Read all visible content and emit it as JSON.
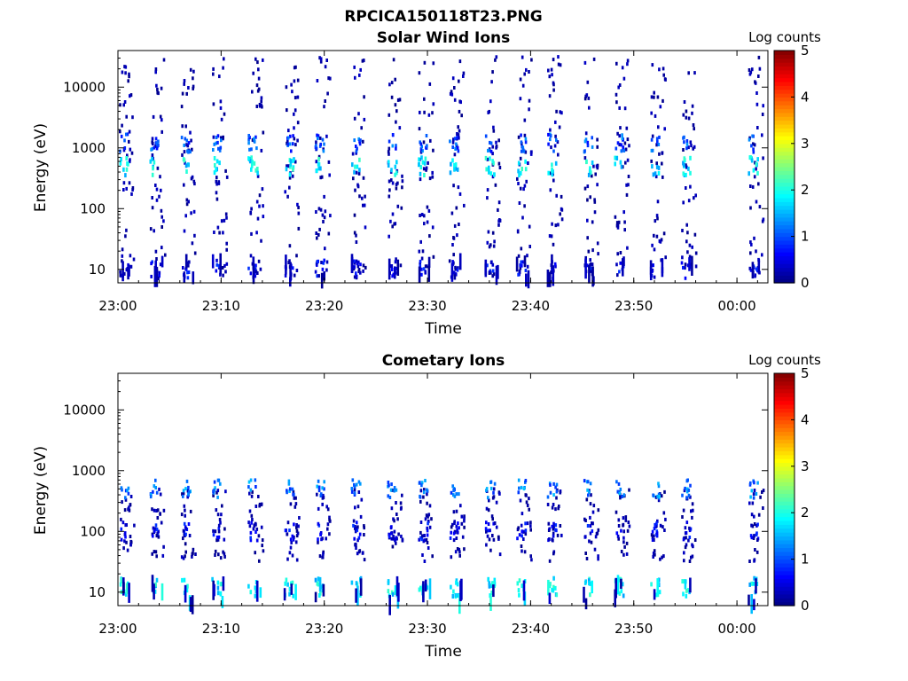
{
  "figure_title": "RPCICA150118T23.PNG",
  "colors": {
    "colormap": [
      "#00007f",
      "#0000ff",
      "#007fff",
      "#00ffff",
      "#7fff7f",
      "#ffff00",
      "#ff7f00",
      "#ff0000",
      "#7f0000"
    ],
    "frame": "#000000",
    "background": "#ffffff"
  },
  "chart_data": [
    {
      "type": "heatmap",
      "title": "Solar Wind Ions",
      "xlabel": "Time",
      "ylabel": "Energy (eV)",
      "xlim": [
        "23:00",
        "00:03"
      ],
      "ylim": [
        6,
        40000
      ],
      "yscale": "log",
      "xticks": [
        "23:00",
        "23:10",
        "23:20",
        "23:30",
        "23:40",
        "23:50",
        "00:00"
      ],
      "yticks": [
        "10",
        "100",
        "1000",
        "10000"
      ],
      "colorbar": {
        "label": "Log counts",
        "range": [
          0,
          5
        ],
        "ticks": [
          "0",
          "1",
          "2",
          "3",
          "4",
          "5"
        ]
      },
      "data_gap": {
        "start": "23:56",
        "end": "00:01"
      },
      "features": [
        {
          "energy_eV": 500,
          "log_counts": 1.8,
          "description_value": "recurring solar wind proton band"
        },
        {
          "energy_eV": 1200,
          "log_counts": 1.0,
          "description_value": "weak alpha band"
        },
        {
          "energy_eV": 10,
          "log_counts": 0.5,
          "description_value": "low-energy streaks"
        }
      ],
      "band_times": [
        "23:00.5",
        "23:03.5",
        "23:06.5",
        "23:09.5",
        "23:13",
        "23:16.5",
        "23:19.5",
        "23:23",
        "23:26.5",
        "23:29.5",
        "23:32.5",
        "23:36",
        "23:39",
        "23:42",
        "23:45.5",
        "23:48.5",
        "23:52",
        "23:55",
        "00:01.5"
      ]
    },
    {
      "type": "heatmap",
      "title": "Cometary Ions",
      "xlabel": "Time",
      "ylabel": "Energy (eV)",
      "xlim": [
        "23:00",
        "00:03"
      ],
      "ylim": [
        6,
        40000
      ],
      "yscale": "log",
      "xticks": [
        "23:00",
        "23:10",
        "23:20",
        "23:30",
        "23:40",
        "23:50",
        "00:00"
      ],
      "yticks": [
        "10",
        "100",
        "1000",
        "10000"
      ],
      "colorbar": {
        "label": "Log counts",
        "range": [
          0,
          5
        ],
        "ticks": [
          "0",
          "1",
          "2",
          "3",
          "4",
          "5"
        ]
      },
      "data_gap": {
        "start": "23:56",
        "end": "00:01"
      },
      "features": [
        {
          "energy_eV": 12,
          "log_counts": 1.8,
          "description_value": "low-energy cometary ion streaks"
        },
        {
          "energy_eV": 500,
          "log_counts": 1.2,
          "description_value": "intermittent 500 eV signal"
        },
        {
          "energy_eV": 100,
          "log_counts": 0.5,
          "description_value": "scattered counts"
        }
      ],
      "band_times": [
        "23:00.5",
        "23:03.5",
        "23:06.5",
        "23:09.5",
        "23:13",
        "23:16.5",
        "23:19.5",
        "23:23",
        "23:26.5",
        "23:29.5",
        "23:32.5",
        "23:36",
        "23:39",
        "23:42",
        "23:45.5",
        "23:48.5",
        "23:52",
        "23:55",
        "00:01.5"
      ]
    }
  ]
}
